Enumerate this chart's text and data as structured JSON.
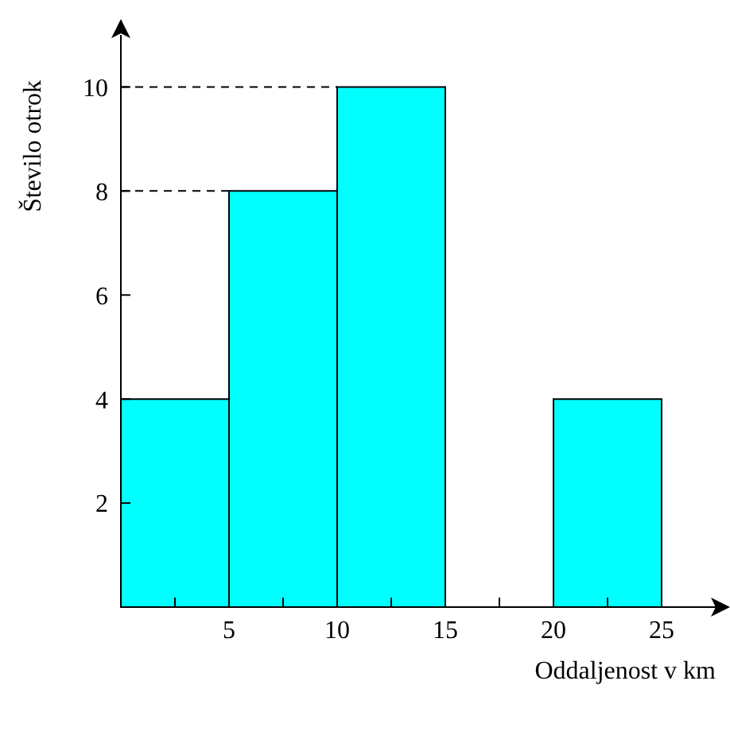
{
  "chart_data": {
    "type": "histogram",
    "xlabel": "Oddaljenost v km",
    "ylabel": "Število otrok",
    "bins": [
      0,
      5,
      10,
      15,
      20,
      25
    ],
    "values": [
      4,
      8,
      10,
      0,
      4
    ],
    "color": "#00ffff",
    "xlim": [
      0,
      27.5
    ],
    "ylim": [
      0,
      11
    ],
    "xticks": [
      {
        "value": 2.5,
        "label": null
      },
      5,
      {
        "value": 7.5,
        "label": null
      },
      10,
      {
        "value": 12.5,
        "label": null
      },
      15,
      {
        "value": 17.5,
        "label": null
      },
      20,
      {
        "value": 22.5,
        "label": null
      },
      25
    ],
    "yticks": [
      2,
      4,
      6,
      8,
      10
    ],
    "ref_lines": [
      {
        "axis": "y",
        "value": 10,
        "line_style": "dashed"
      },
      {
        "axis": "y",
        "value": 8,
        "line_style": "dashed"
      }
    ],
    "grid": false
  }
}
